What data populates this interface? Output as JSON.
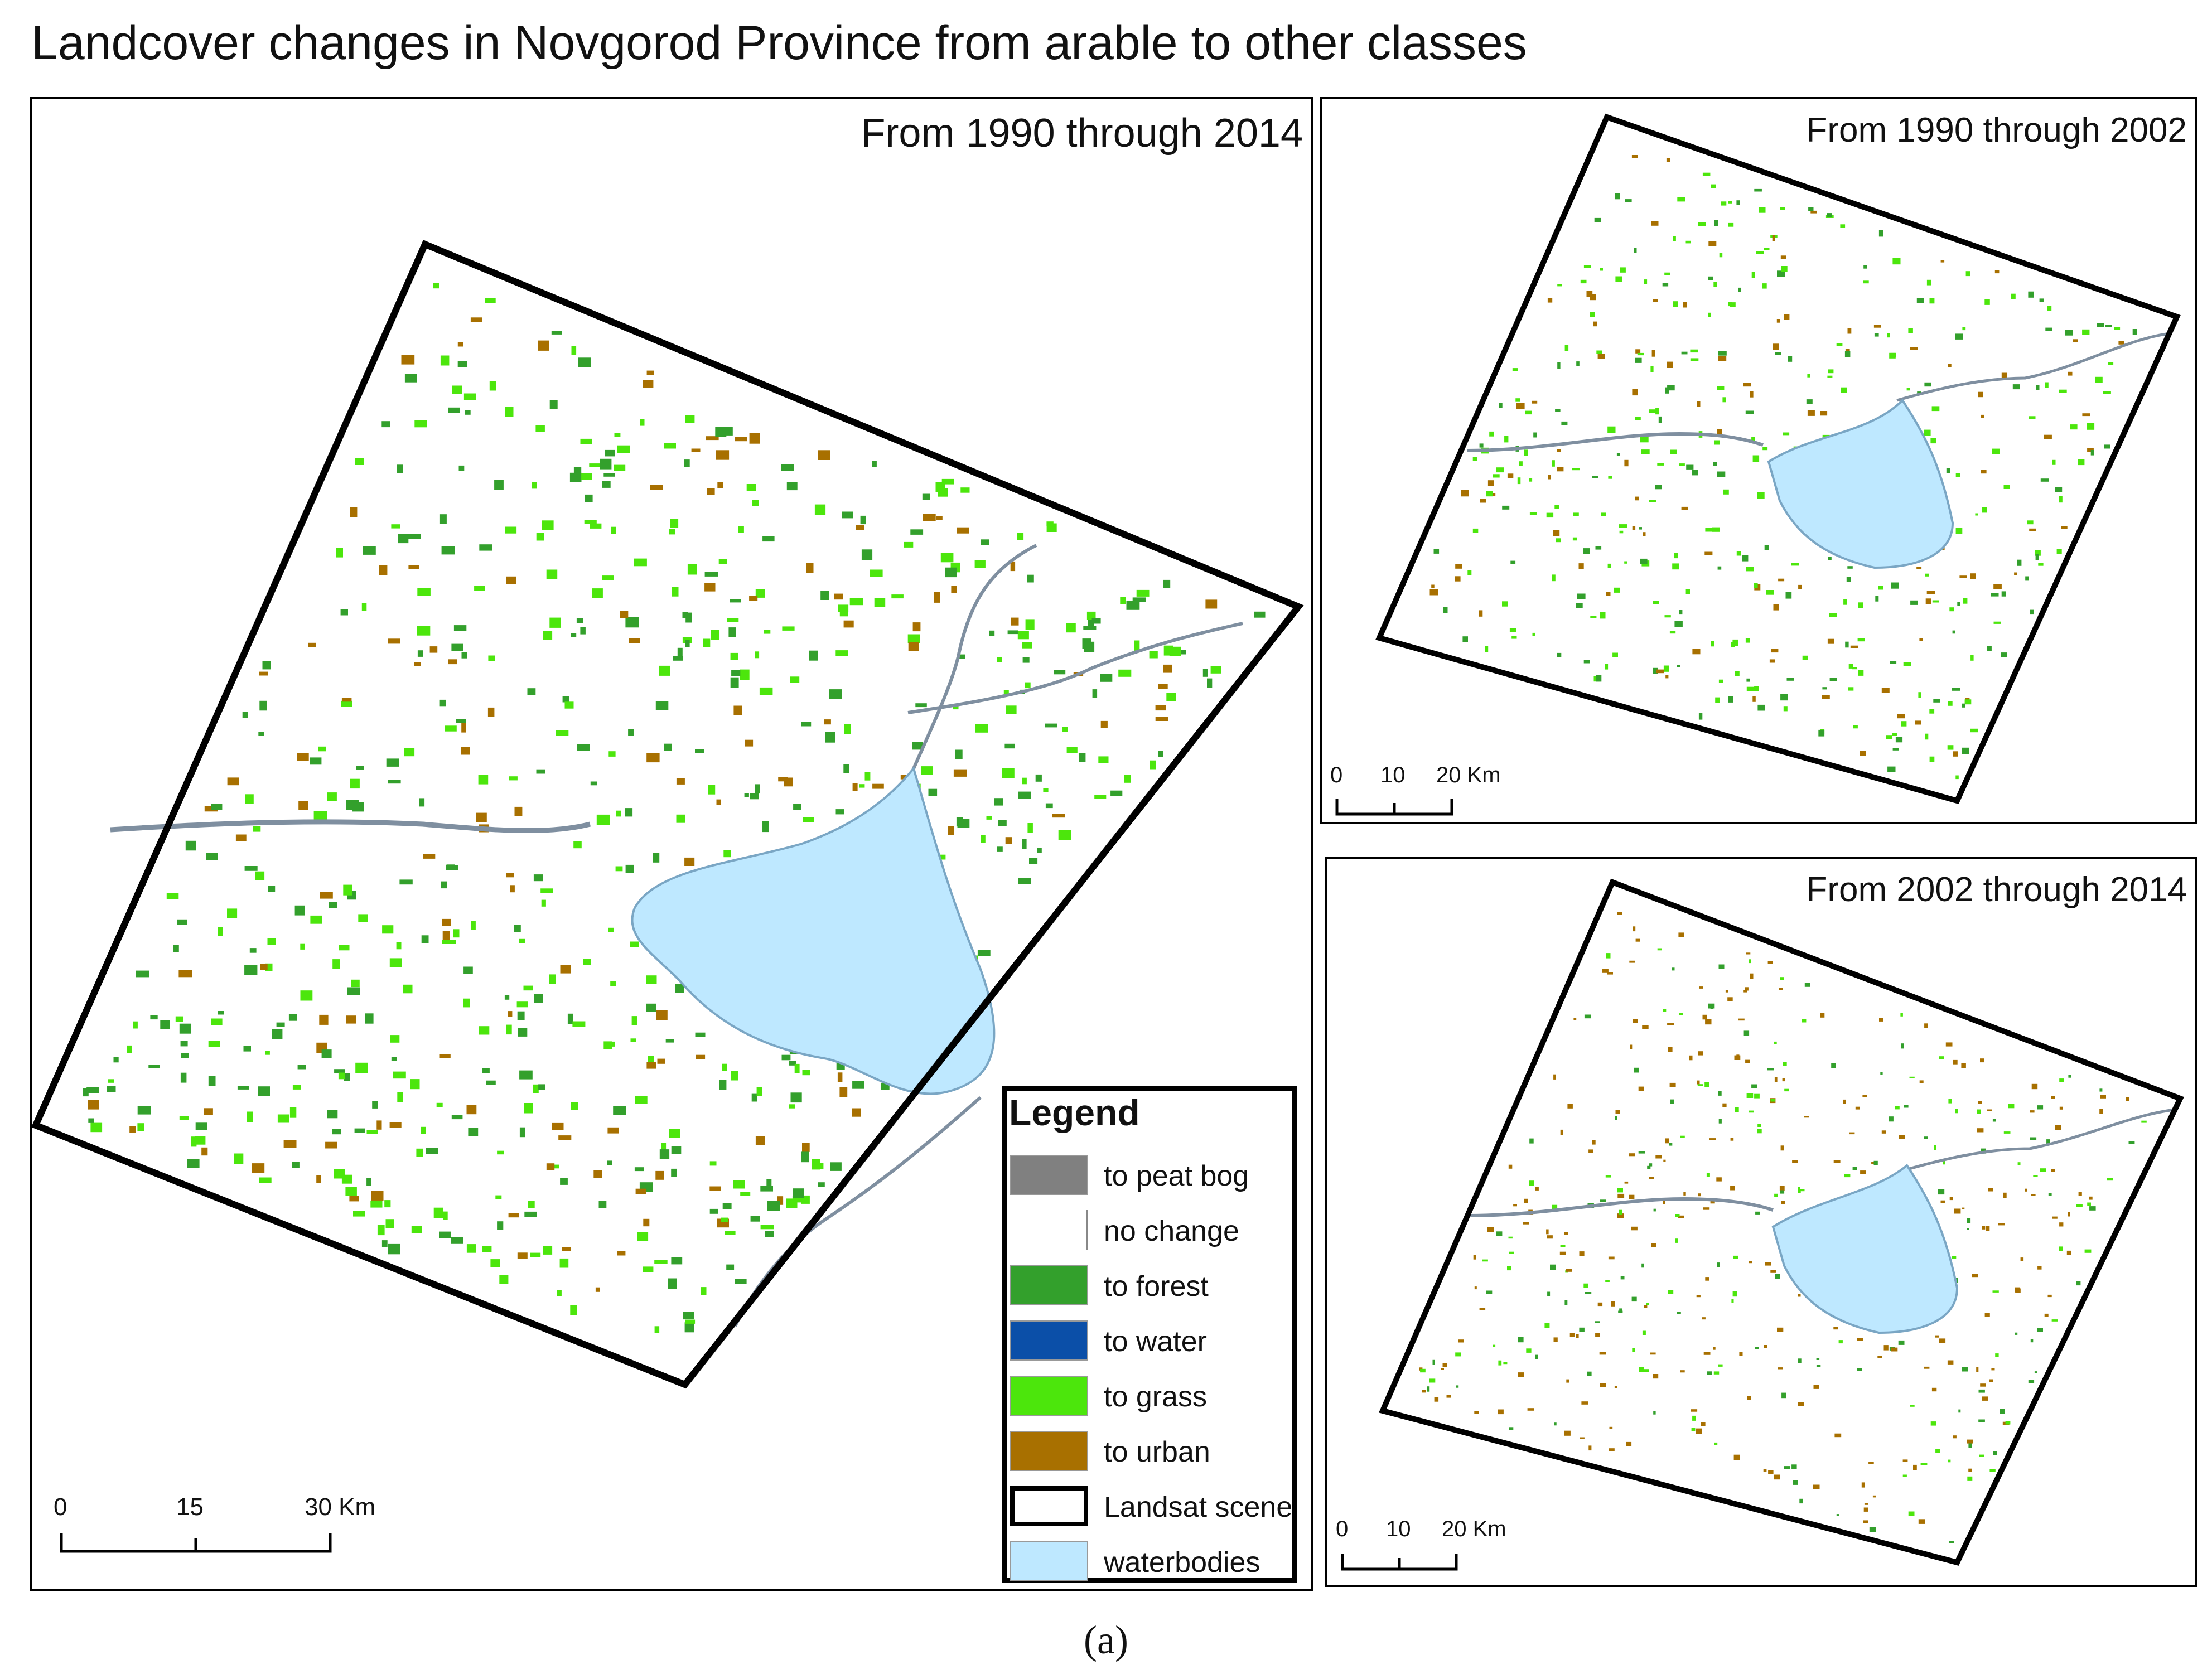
{
  "title": "Landcover changes in Novgorod Province from arable to other classes",
  "caption": "(a)",
  "panels": {
    "main": {
      "label": "From 1990 through 2014",
      "scale": {
        "ticks": [
          "0",
          "15",
          "30 Km"
        ]
      }
    },
    "top_right": {
      "label": "From 1990 through 2002",
      "scale": {
        "ticks": [
          "0",
          "10",
          "20 Km"
        ]
      }
    },
    "bottom_right": {
      "label": "From 2002 through 2014",
      "scale": {
        "ticks": [
          "0",
          "10",
          "20 Km"
        ]
      }
    }
  },
  "legend": {
    "title": "Legend",
    "items": [
      {
        "label": "to peat bog",
        "color": "#808080"
      },
      {
        "label": "no change",
        "color": "#ffffff"
      },
      {
        "label": "to forest",
        "color": "#33a02c"
      },
      {
        "label": "to water",
        "color": "#0b4fa8"
      },
      {
        "label": "to grass",
        "color": "#4ce60c"
      },
      {
        "label": "to urban",
        "color": "#a87000"
      },
      {
        "label": "Landsat scene",
        "color": "#000000"
      },
      {
        "label": "waterbodies",
        "color": "#bee8ff"
      }
    ]
  }
}
